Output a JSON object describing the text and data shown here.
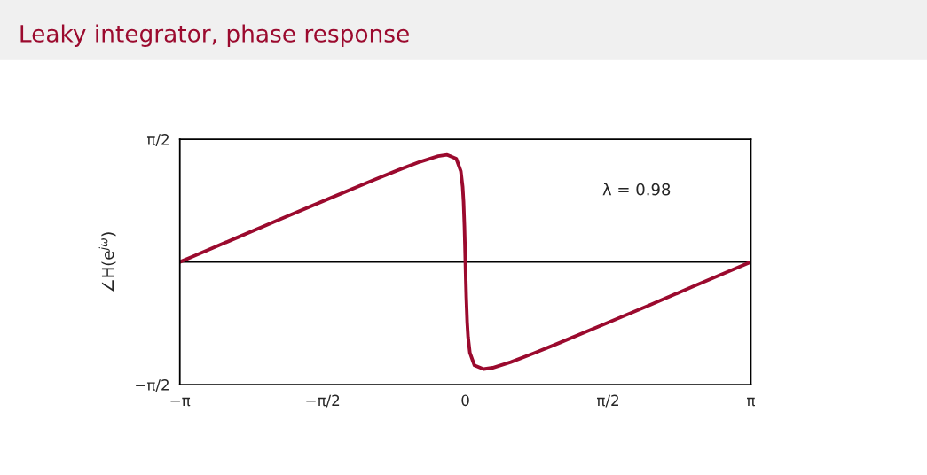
{
  "chart_data": {
    "type": "line",
    "title": "Leaky integrator, phase response",
    "ylabel": "∠H(e$^{jω}$)",
    "x": [
      -3.1416,
      -3.0,
      -2.5,
      -2.0,
      -1.5,
      -1.0,
      -0.75,
      -0.5,
      -0.3,
      -0.2,
      -0.1,
      -0.05,
      -0.03,
      -0.02,
      -0.01,
      -0.005,
      -0.0025,
      0,
      0.0025,
      0.005,
      0.01,
      0.02,
      0.03,
      0.05,
      0.1,
      0.2,
      0.3,
      0.5,
      0.75,
      1.0,
      1.5,
      2.0,
      2.5,
      3.0,
      3.1416
    ],
    "series": [
      {
        "color": "#9b0a2e",
        "values": [
          0,
          0.07,
          0.317,
          0.565,
          0.81,
          1.052,
          1.17,
          1.282,
          1.354,
          1.371,
          1.322,
          1.162,
          0.963,
          0.77,
          0.455,
          0.24,
          0.122,
          0,
          -0.122,
          -0.24,
          -0.455,
          -0.77,
          -0.963,
          -1.162,
          -1.322,
          -1.371,
          -1.354,
          -1.282,
          -1.17,
          -1.052,
          -0.81,
          -0.565,
          -0.317,
          -0.07,
          0
        ]
      }
    ],
    "xlim": [
      -3.1416,
      3.1416
    ],
    "xticks": [
      {
        "value": -3.1416,
        "label": "−π"
      },
      {
        "value": -1.5708,
        "label": "−π/2"
      },
      0,
      {
        "value": 1.5708,
        "label": "π/2"
      },
      {
        "value": 3.1416,
        "label": "π"
      }
    ],
    "ylim": [
      -1.5708,
      1.5708
    ],
    "yticks": [
      {
        "value": -1.5708,
        "label": "−π/2"
      },
      {
        "value": 1.5708,
        "label": "π/2"
      }
    ],
    "ref_lines": [
      {
        "axis": "y",
        "value": 0,
        "color": "#000000"
      }
    ],
    "annotations": [
      "λ = 0.98"
    ],
    "grid": false,
    "legend": false,
    "marker": "none",
    "line_style": "solid"
  }
}
